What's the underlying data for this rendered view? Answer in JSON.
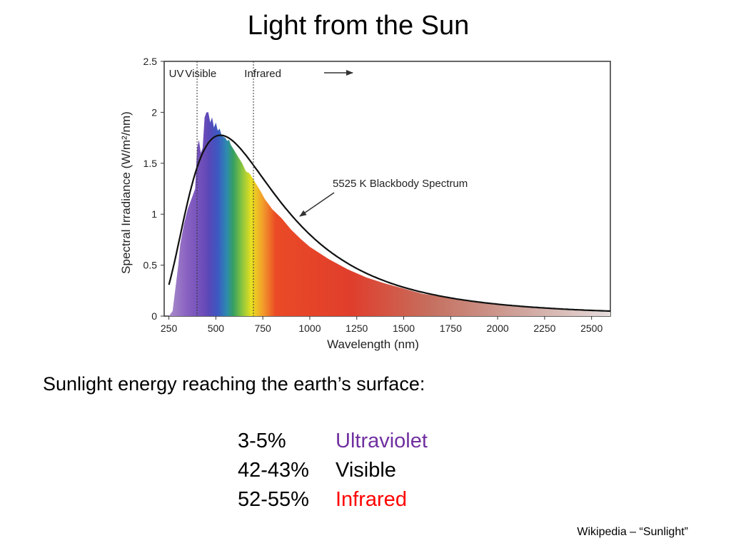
{
  "slide": {
    "title": "Light from the Sun",
    "subtitle": "Sunlight energy reaching the earth’s surface:",
    "stats": [
      {
        "percent": "3-5%",
        "label": "Ultraviolet",
        "color": "#7030a0"
      },
      {
        "percent": "42-43%",
        "label": "Visible",
        "color": "#000000"
      },
      {
        "percent": "52-55%",
        "label": "Infrared",
        "color": "#ff0000"
      }
    ],
    "credit": "Wikipedia – “Sunlight”"
  },
  "chart_data": {
    "type": "area",
    "xlabel": "Wavelength (nm)",
    "ylabel": "Spectral Irradiance (W/m²/nm)",
    "xlim": [
      225,
      2600
    ],
    "ylim": [
      0,
      2.5
    ],
    "xticks": [
      250,
      500,
      750,
      1000,
      1250,
      1500,
      1750,
      2000,
      2250,
      2500
    ],
    "yticks": [
      0,
      0.5,
      1,
      1.5,
      2,
      2.5
    ],
    "region_labels": [
      {
        "text": "UV",
        "x": 290
      },
      {
        "text": "Visible",
        "x": 420
      },
      {
        "text": "Infrared",
        "x": 750
      }
    ],
    "region_boundaries": [
      400,
      700
    ],
    "curve_label": "5525 K Blackbody Spectrum",
    "series": [
      {
        "kind": "measured",
        "x": [
          250,
          270,
          290,
          300,
          310,
          330,
          350,
          370,
          380,
          390,
          400,
          410,
          420,
          430,
          440,
          450,
          460,
          470,
          480,
          490,
          500,
          510,
          520,
          530,
          540,
          550,
          560,
          570,
          580,
          600,
          620,
          640,
          660,
          680,
          700,
          720,
          740,
          760,
          780,
          800,
          850,
          900,
          950,
          1000,
          1100,
          1200,
          1300,
          1400,
          1500,
          1600,
          1700,
          1800,
          1900,
          2000,
          2100,
          2200,
          2300,
          2400,
          2500,
          2600
        ],
        "y": [
          0,
          0.05,
          0.35,
          0.5,
          0.7,
          0.9,
          1.05,
          1.15,
          1.2,
          1.25,
          1.65,
          1.73,
          1.6,
          1.65,
          1.95,
          2.0,
          2.0,
          1.9,
          1.95,
          1.85,
          1.9,
          1.82,
          1.84,
          1.78,
          1.76,
          1.75,
          1.72,
          1.73,
          1.68,
          1.62,
          1.56,
          1.5,
          1.42,
          1.4,
          1.34,
          1.28,
          1.22,
          1.15,
          1.1,
          1.05,
          0.96,
          0.85,
          0.76,
          0.68,
          0.56,
          0.46,
          0.38,
          0.32,
          0.27,
          0.22,
          0.19,
          0.16,
          0.14,
          0.12,
          0.105,
          0.09,
          0.08,
          0.065,
          0.05,
          0.04
        ]
      },
      {
        "kind": "blackbody",
        "temperature_k": 5525,
        "peak": 1.775
      }
    ]
  }
}
